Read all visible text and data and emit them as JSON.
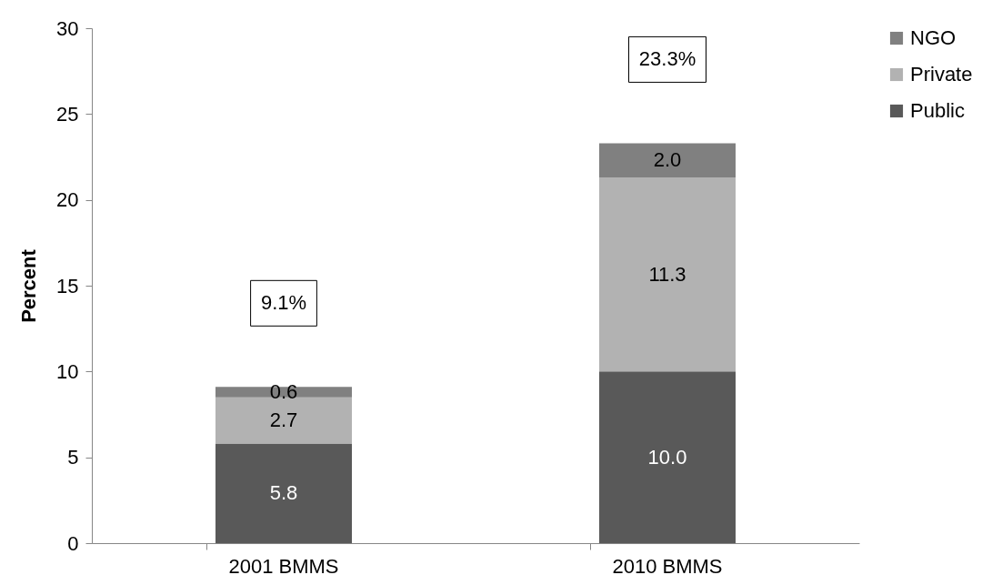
{
  "chart_data": {
    "type": "bar",
    "stacked": true,
    "ylabel": "Percent",
    "categories": [
      "2001 BMMS",
      "2010 BMMS"
    ],
    "series": [
      {
        "name": "Public",
        "color": "#595959",
        "values": [
          5.8,
          10.0
        ],
        "value_labels": [
          "5.8",
          "10.0"
        ]
      },
      {
        "name": "Private",
        "color": "#b2b2b2",
        "values": [
          2.7,
          11.3
        ],
        "value_labels": [
          "2.7",
          "11.3"
        ]
      },
      {
        "name": "NGO",
        "color": "#808080",
        "values": [
          0.6,
          2.0
        ],
        "value_labels": [
          "0.6",
          "2.0"
        ]
      }
    ],
    "annotations": [
      "9.1%",
      "23.3%"
    ],
    "ylim": [
      0,
      30
    ],
    "yticks": [
      0,
      5,
      10,
      15,
      20,
      25,
      30
    ],
    "legend": "right",
    "grid": false
  }
}
